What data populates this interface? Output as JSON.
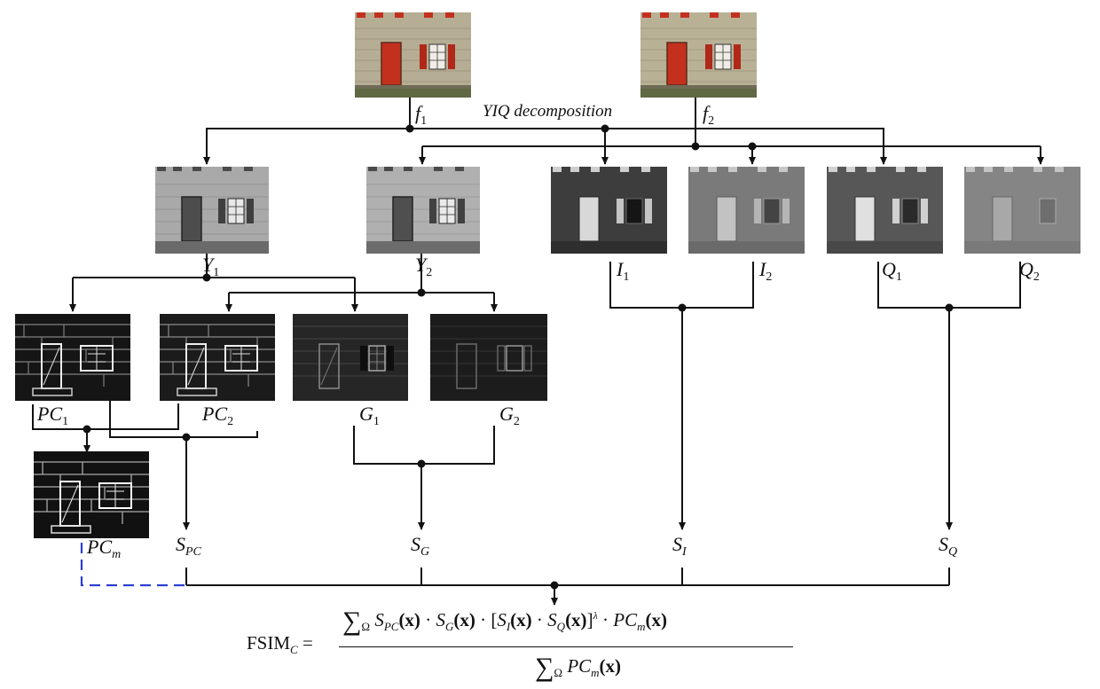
{
  "caption": "YIQ decomposition",
  "labels": {
    "f1": {
      "base": "f",
      "sub": "1"
    },
    "f2": {
      "base": "f",
      "sub": "2"
    },
    "Y1": {
      "base": "Y",
      "sub": "1"
    },
    "Y2": {
      "base": "Y",
      "sub": "2"
    },
    "I1": {
      "base": "I",
      "sub": "1"
    },
    "I2": {
      "base": "I",
      "sub": "2"
    },
    "Q1": {
      "base": "Q",
      "sub": "1"
    },
    "Q2": {
      "base": "Q",
      "sub": "2"
    },
    "PC1": {
      "base": "PC",
      "sub": "1"
    },
    "PC2": {
      "base": "PC",
      "sub": "2"
    },
    "G1": {
      "base": "G",
      "sub": "1"
    },
    "G2": {
      "base": "G",
      "sub": "2"
    },
    "PCm": {
      "base": "PC",
      "sub": "m"
    },
    "SPC": {
      "base": "S",
      "sub": "PC"
    },
    "SG": {
      "base": "S",
      "sub": "G"
    },
    "SI": {
      "base": "S",
      "sub": "I"
    },
    "SQ": {
      "base": "S",
      "sub": "Q"
    }
  },
  "formula": {
    "lhs": "FSIM",
    "lhs_sub": "C",
    "equals": "=",
    "sum": "∑",
    "omega": "Ω",
    "spc": "S",
    "spc_sub": "PC",
    "x": "(x)",
    "dot": "·",
    "sg": "S",
    "sg_sub": "G",
    "lbr": "[",
    "si": "S",
    "si_sub": "I",
    "sq": "S",
    "sq_sub": "Q",
    "rbr": "]",
    "lambda": "λ",
    "pc": "PC",
    "pc_sub": "m"
  },
  "colors": {
    "line": "#111111",
    "dashed": "#2b3fd4",
    "brick_color": "#b5ad94",
    "door_red": "#c4301e"
  }
}
